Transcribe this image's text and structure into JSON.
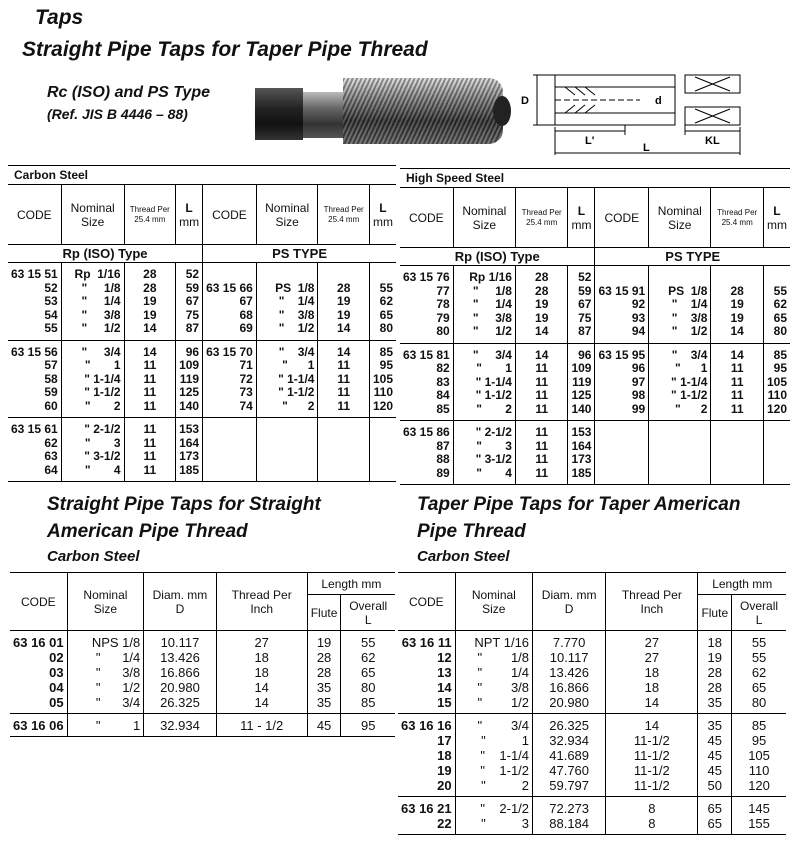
{
  "header": {
    "category": "Taps",
    "title": "Straight Pipe Taps for Taper Pipe Thread",
    "subtitle": "Rc (ISO) and PS Type",
    "reference": "(Ref. JIS B 4446 – 88)"
  },
  "diagram": {
    "labels": {
      "D": "D",
      "d": "d",
      "Lp": "L'",
      "KL": "KL",
      "L": "L"
    }
  },
  "top_tables": [
    {
      "material": "Carbon Steel",
      "headers": {
        "code": "CODE",
        "size": "Nominal Size",
        "thread": "Thread Per 25.4 mm",
        "L": "L",
        "L_unit": "mm"
      },
      "types": [
        "Rp (ISO) Type",
        "PS TYPE"
      ],
      "groups": [
        {
          "rows": [
            [
              "63 15 51",
              "Rp  1/16",
              "28",
              "52",
              "",
              "",
              "",
              ""
            ],
            [
              "52",
              "\"     1/8",
              "28",
              "59",
              "63 15 66",
              "PS  1/8",
              "28",
              "55"
            ],
            [
              "53",
              "\"     1/4",
              "19",
              "67",
              "67",
              "\"    1/4",
              "19",
              "62"
            ],
            [
              "54",
              "\"     3/8",
              "19",
              "75",
              "68",
              "\"    3/8",
              "19",
              "65"
            ],
            [
              "55",
              "\"     1/2",
              "14",
              "87",
              "69",
              "\"    1/2",
              "14",
              "80"
            ]
          ]
        },
        {
          "rows": [
            [
              "63 15 56",
              "\"     3/4",
              "14",
              "96",
              "63 15 70",
              "\"    3/4",
              "14",
              "85"
            ],
            [
              "57",
              "\"       1",
              "11",
              "109",
              "71",
              "\"      1",
              "11",
              "95"
            ],
            [
              "58",
              "\" 1-1/4",
              "11",
              "119",
              "72",
              "\" 1-1/4",
              "11",
              "105"
            ],
            [
              "59",
              "\" 1-1/2",
              "11",
              "125",
              "73",
              "\" 1-1/2",
              "11",
              "110"
            ],
            [
              "60",
              "\"       2",
              "11",
              "140",
              "74",
              "\"      2",
              "11",
              "120"
            ]
          ]
        },
        {
          "rows": [
            [
              "63 15 61",
              "\" 2-1/2",
              "11",
              "153",
              "",
              "",
              "",
              ""
            ],
            [
              "62",
              "\"       3",
              "11",
              "164",
              "",
              "",
              "",
              ""
            ],
            [
              "63",
              "\" 3-1/2",
              "11",
              "173",
              "",
              "",
              "",
              ""
            ],
            [
              "64",
              "\"       4",
              "11",
              "185",
              "",
              "",
              "",
              ""
            ]
          ]
        }
      ]
    },
    {
      "material": "High Speed Steel",
      "headers": {
        "code": "CODE",
        "size": "Nominal Size",
        "thread": "Thread Per 25.4 mm",
        "L": "L",
        "L_unit": "mm"
      },
      "types": [
        "Rp (ISO) Type",
        "PS TYPE"
      ],
      "groups": [
        {
          "rows": [
            [
              "63 15 76",
              "Rp 1/16",
              "28",
              "52",
              "",
              "",
              "",
              ""
            ],
            [
              "77",
              "\"     1/8",
              "28",
              "59",
              "63 15 91",
              "PS  1/8",
              "28",
              "55"
            ],
            [
              "78",
              "\"     1/4",
              "19",
              "67",
              "92",
              "\"    1/4",
              "19",
              "62"
            ],
            [
              "79",
              "\"     3/8",
              "19",
              "75",
              "93",
              "\"    3/8",
              "19",
              "65"
            ],
            [
              "80",
              "\"     1/2",
              "14",
              "87",
              "94",
              "\"    1/2",
              "14",
              "80"
            ]
          ]
        },
        {
          "rows": [
            [
              "63 15 81",
              "\"     3/4",
              "14",
              "96",
              "63 15 95",
              "\"    3/4",
              "14",
              "85"
            ],
            [
              "82",
              "\"       1",
              "11",
              "109",
              "96",
              "\"      1",
              "11",
              "95"
            ],
            [
              "83",
              "\" 1-1/4",
              "11",
              "119",
              "97",
              "\" 1-1/4",
              "11",
              "105"
            ],
            [
              "84",
              "\" 1-1/2",
              "11",
              "125",
              "98",
              "\" 1-1/2",
              "11",
              "110"
            ],
            [
              "85",
              "\"       2",
              "11",
              "140",
              "99",
              "\"      2",
              "11",
              "120"
            ]
          ]
        },
        {
          "rows": [
            [
              "63 15 86",
              "\" 2-1/2",
              "11",
              "153",
              "",
              "",
              "",
              ""
            ],
            [
              "87",
              "\"       3",
              "11",
              "164",
              "",
              "",
              "",
              ""
            ],
            [
              "88",
              "\" 3-1/2",
              "11",
              "173",
              "",
              "",
              "",
              ""
            ],
            [
              "89",
              "\"       4",
              "11",
              "185",
              "",
              "",
              "",
              ""
            ]
          ]
        }
      ]
    }
  ],
  "bottom_tables": [
    {
      "title_line1": "Straight Pipe Taps for Straight",
      "title_line2": "American Pipe Thread",
      "material": "Carbon Steel",
      "headers": {
        "code": "CODE",
        "size": "Nominal Size",
        "diam": "Diam. mm D",
        "thread": "Thread Per Inch",
        "length": "Length mm",
        "flute": "Flute",
        "overall": "Overall L"
      },
      "groups": [
        {
          "rows": [
            [
              "63 16 01",
              "NPS 1/8",
              "10.117",
              "27",
              "19",
              "55"
            ],
            [
              "02",
              "\"      1/4",
              "13.426",
              "18",
              "28",
              "62"
            ],
            [
              "03",
              "\"      3/8",
              "16.866",
              "18",
              "28",
              "65"
            ],
            [
              "04",
              "\"      1/2",
              "20.980",
              "14",
              "35",
              "80"
            ],
            [
              "05",
              "\"      3/4",
              "26.325",
              "14",
              "35",
              "85"
            ]
          ]
        },
        {
          "rows": [
            [
              "63 16 06",
              "\"         1",
              "32.934",
              "11 - 1/2",
              "45",
              "95"
            ]
          ]
        }
      ]
    },
    {
      "title_line1": "Taper Pipe Taps for Taper American",
      "title_line2": "Pipe Thread",
      "material": "Carbon Steel",
      "headers": {
        "code": "CODE",
        "size": "Nominal Size",
        "diam": "Diam. mm D",
        "thread": "Thread Per Inch",
        "length": "Length mm",
        "flute": "Flute",
        "overall": "Overall L"
      },
      "groups": [
        {
          "rows": [
            [
              "63 16 11",
              "NPT 1/16",
              "7.770",
              "27",
              "18",
              "55"
            ],
            [
              "12",
              "\"        1/8",
              "10.117",
              "27",
              "19",
              "55"
            ],
            [
              "13",
              "\"        1/4",
              "13.426",
              "18",
              "28",
              "62"
            ],
            [
              "14",
              "\"        3/8",
              "16.866",
              "18",
              "28",
              "65"
            ],
            [
              "15",
              "\"        1/2",
              "20.980",
              "14",
              "35",
              "80"
            ]
          ]
        },
        {
          "rows": [
            [
              "63 16 16",
              "\"        3/4",
              "26.325",
              "14",
              "35",
              "85"
            ],
            [
              "17",
              "\"          1",
              "32.934",
              "11-1/2",
              "45",
              "95"
            ],
            [
              "18",
              "\"    1-1/4",
              "41.689",
              "11-1/2",
              "45",
              "105"
            ],
            [
              "19",
              "\"    1-1/2",
              "47.760",
              "11-1/2",
              "45",
              "110"
            ],
            [
              "20",
              "\"          2",
              "59.797",
              "11-1/2",
              "50",
              "120"
            ]
          ]
        },
        {
          "rows": [
            [
              "63 16 21",
              "\"    2-1/2",
              "72.273",
              "8",
              "65",
              "145"
            ],
            [
              "22",
              "\"          3",
              "88.184",
              "8",
              "65",
              "155"
            ]
          ]
        }
      ]
    }
  ]
}
